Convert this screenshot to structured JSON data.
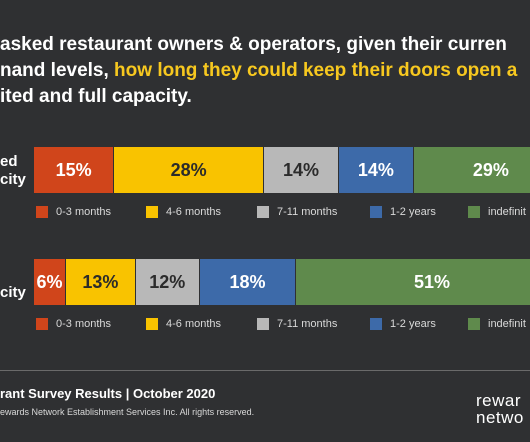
{
  "headline": {
    "line1": "asked restaurant owners & operators, given their curren",
    "line2_plain": "nand levels, ",
    "line2_highlight": "how long they could keep their doors open a",
    "line3": "ited and full capacity."
  },
  "colors": {
    "background": "#2f3032",
    "highlight": "#f7c81f",
    "red": "#d0451b",
    "yellow": "#f9c300",
    "gray": "#b8b8b8",
    "blue": "#3d6aa9",
    "green": "#5f8a4c"
  },
  "chart_data": {
    "type": "bar",
    "orientation": "horizontal-stacked",
    "categories": [
      "ed\ncity",
      "city"
    ],
    "row_labels": [
      [
        "ed",
        "city"
      ],
      [
        "city"
      ]
    ],
    "series": [
      {
        "name": "0-3 months",
        "color": "#d0451b",
        "values": [
          15,
          6
        ]
      },
      {
        "name": "4-6 months",
        "color": "#f9c300",
        "values": [
          28,
          13
        ]
      },
      {
        "name": "7-11 months",
        "color": "#b8b8b8",
        "values": [
          14,
          12
        ]
      },
      {
        "name": "1-2 years",
        "color": "#3d6aa9",
        "values": [
          14,
          18
        ]
      },
      {
        "name": "indefini",
        "color": "#5f8a4c",
        "values": [
          29,
          51
        ]
      }
    ],
    "data_labels": [
      [
        "15%",
        "28%",
        "14%",
        "14%",
        "29%"
      ],
      [
        "6%",
        "13%",
        "12%",
        "18%",
        "51%"
      ]
    ],
    "legend_labels": [
      [
        "0-3 months",
        "4-6 months",
        "7-11 months",
        "1-2 years",
        "indefinit"
      ],
      [
        "0-3 months",
        "4-6 months",
        "7-11 months",
        "1-2 years",
        "indefinit"
      ]
    ],
    "legend_position": "below each bar"
  },
  "footer": {
    "title": "rant Survey Results  |  October 2020",
    "copyright": "ewards Network Establishment Services Inc. All rights reserved.",
    "logo_line1": "rewar",
    "logo_line2": "netwo"
  }
}
